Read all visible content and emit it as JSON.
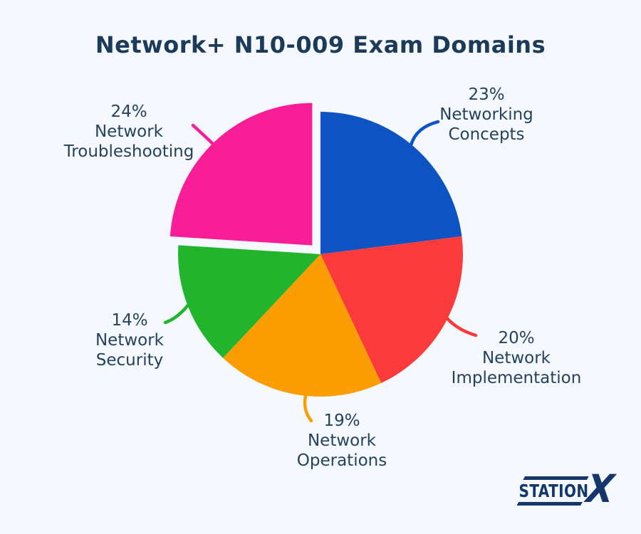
{
  "page": {
    "background": "#f5f9fd",
    "title": "Network+ N10-009 Exam Domains",
    "title_color": "#1c3b5a",
    "label_color": "#24425e"
  },
  "chart_data": {
    "type": "pie",
    "title": "Network+ N10-009 Exam Domains",
    "start_angle_deg": 0,
    "direction": "clockwise",
    "legend_position": "labels-around-pie",
    "slices": [
      {
        "label": "Networking Concepts",
        "pct_label": "23%",
        "value": 23,
        "color": "#0e53c4",
        "exploded": false
      },
      {
        "label": "Network Implementation",
        "pct_label": "20%",
        "value": 20,
        "color": "#fb3b3b",
        "exploded": false
      },
      {
        "label": "Network Operations",
        "pct_label": "19%",
        "value": 19,
        "color": "#fb9d03",
        "exploded": false
      },
      {
        "label": "Network Security",
        "pct_label": "14%",
        "value": 14,
        "color": "#21b42c",
        "exploded": false
      },
      {
        "label": "Network Troubleshooting",
        "pct_label": "24%",
        "value": 24,
        "color": "#f91d97",
        "exploded": true
      }
    ]
  },
  "logo": {
    "station": "STATION",
    "x": "X",
    "color": "#14366b"
  }
}
